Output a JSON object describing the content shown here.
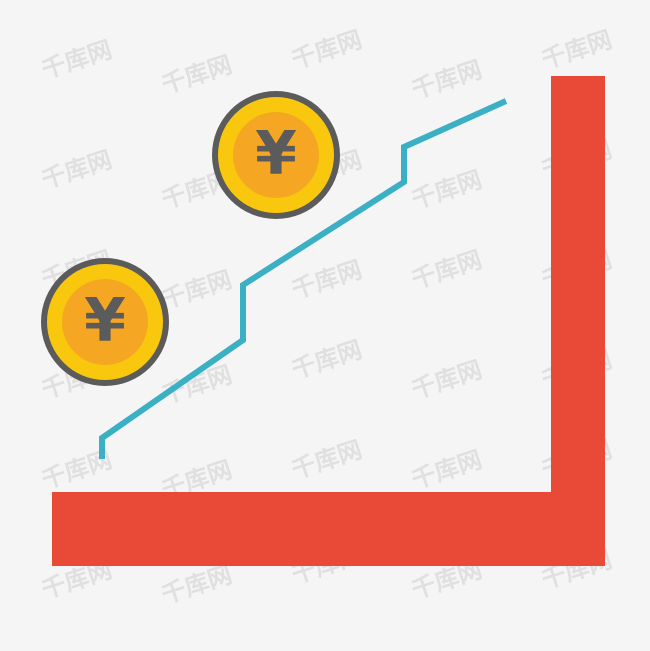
{
  "illustration": {
    "coin_symbol": "¥",
    "watermark_text": "千库网",
    "colors": {
      "background": "#f5f5f5",
      "axis": "#e84a37",
      "trend_line": "#3bb0c4",
      "coin_rim": "#5b5b5b",
      "coin_outer": "#f9c80e",
      "coin_inner": "#f5a623",
      "coin_symbol": "#5b5b5b"
    },
    "coins": [
      {
        "name": "upper-coin"
      },
      {
        "name": "lower-coin"
      }
    ]
  }
}
